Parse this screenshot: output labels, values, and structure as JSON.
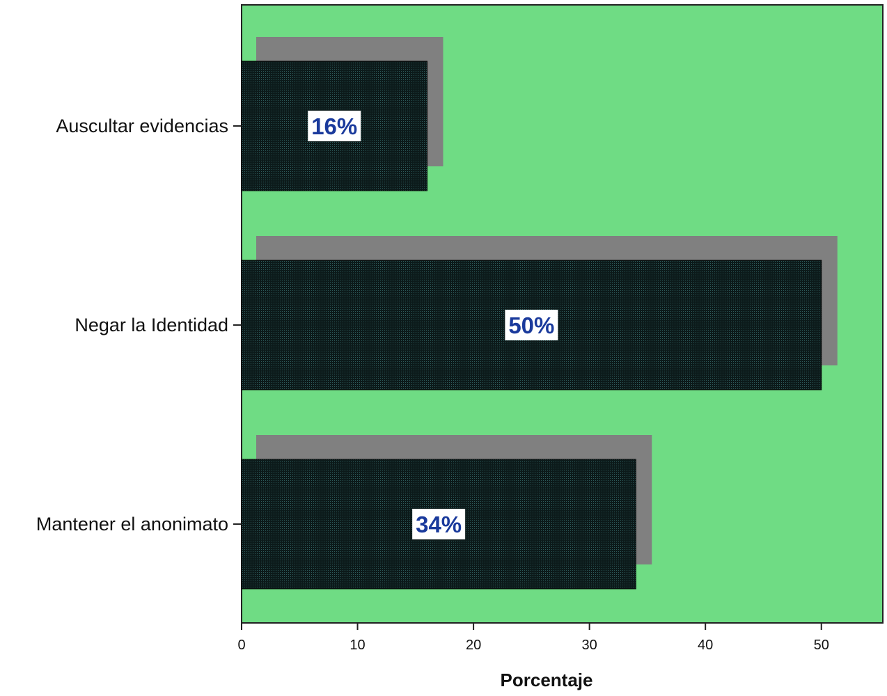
{
  "chart_data": {
    "type": "bar",
    "orientation": "horizontal",
    "categories": [
      "Auscultar evidencias",
      "Negar la Identidad",
      "Mantener el anonimato"
    ],
    "values": [
      16,
      50,
      34
    ],
    "data_labels": [
      "16%",
      "50%",
      "34%"
    ],
    "xlabel": "Porcentaje",
    "xlim": [
      0,
      55.3
    ],
    "xticks": [
      0,
      10,
      20,
      30,
      40,
      50
    ],
    "grid": false,
    "legend": "none",
    "colors": {
      "plot_background": "#6fdc84",
      "bar_fill": "#0c1a1a",
      "bar_pattern": "#2e5c5c",
      "shadow": "#808080",
      "label_text": "#1a3a9c",
      "label_background": "#ffffff"
    }
  }
}
